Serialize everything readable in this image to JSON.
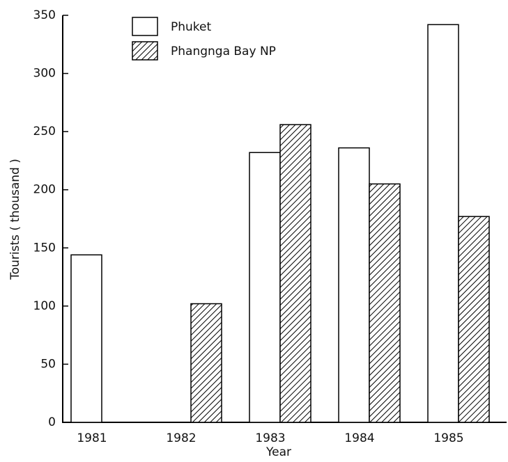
{
  "chart_data": {
    "type": "bar",
    "y_label": "Tourists ( thousand )",
    "x_label": "Year",
    "categories": [
      "1981",
      "1982",
      "1983",
      "1984",
      "1985"
    ],
    "series": [
      {
        "name": "Phuket",
        "color": "#ffffff",
        "pattern": "none",
        "values": [
          144,
          null,
          232,
          236,
          342
        ]
      },
      {
        "name": "Phangnga Bay NP",
        "color": "#000000",
        "pattern": "hatch",
        "values": [
          0,
          102,
          256,
          205,
          177
        ]
      }
    ],
    "ylim": [
      0,
      350
    ],
    "yticks": [
      0,
      50,
      100,
      150,
      200,
      250,
      300,
      350
    ],
    "grid": false,
    "legend": "top"
  }
}
